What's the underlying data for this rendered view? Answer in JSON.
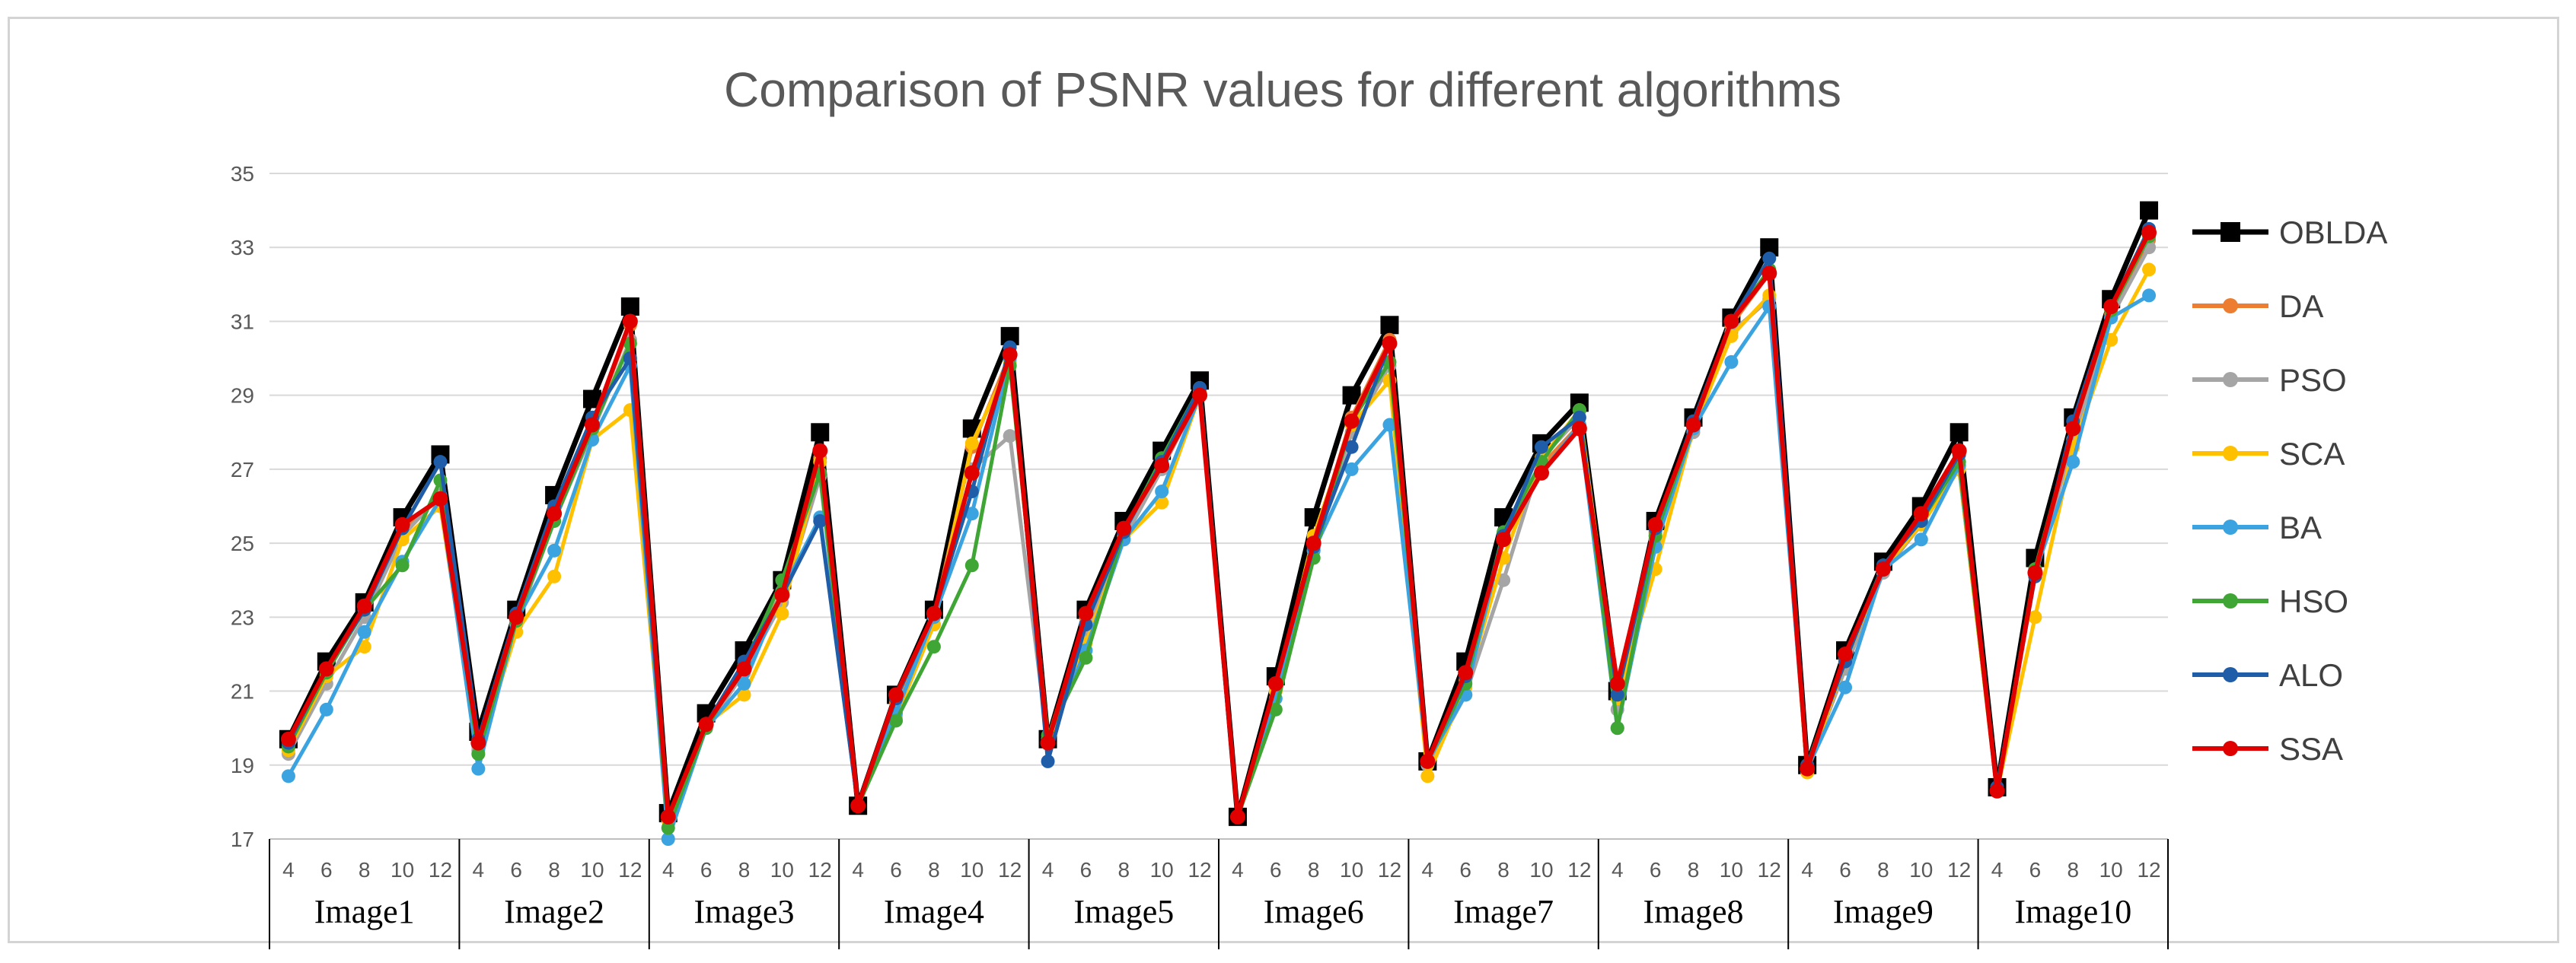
{
  "chart_data": {
    "type": "line",
    "title": "Comparison of PSNR values for different algorithms",
    "xlabel": "",
    "ylabel": "",
    "ylim": [
      17,
      35
    ],
    "yticks": [
      17,
      19,
      21,
      23,
      25,
      27,
      29,
      31,
      33,
      35
    ],
    "thresholds": [
      "4",
      "6",
      "8",
      "10",
      "12"
    ],
    "groups": [
      "Image1",
      "Image2",
      "Image3",
      "Image4",
      "Image5",
      "Image6",
      "Image7",
      "Image8",
      "Image9",
      "Image10"
    ],
    "legend_position": "right",
    "series": [
      {
        "name": "OBLDA",
        "color": "#000000",
        "marker": "square",
        "values": [
          19.7,
          21.8,
          23.4,
          25.7,
          27.4,
          19.9,
          23.2,
          26.3,
          28.9,
          31.4,
          17.7,
          20.4,
          22.1,
          24.0,
          28.0,
          17.9,
          20.9,
          23.2,
          28.1,
          30.6,
          19.7,
          23.2,
          25.6,
          27.5,
          29.4,
          17.6,
          21.4,
          25.7,
          29.0,
          30.9,
          19.1,
          21.8,
          25.7,
          27.7,
          28.8,
          21.0,
          25.6,
          28.4,
          31.1,
          33.0,
          19.0,
          22.1,
          24.5,
          26.0,
          28.0,
          18.4,
          24.6,
          28.4,
          31.6,
          34.0
        ]
      },
      {
        "name": "DA",
        "color": "#ed7d31",
        "marker": "circle",
        "values": [
          19.6,
          21.6,
          23.2,
          25.4,
          26.2,
          19.5,
          23.0,
          25.9,
          28.2,
          30.9,
          17.6,
          20.1,
          21.6,
          23.7,
          27.3,
          17.9,
          20.7,
          23.0,
          27.6,
          30.1,
          19.7,
          23.0,
          25.2,
          27.1,
          29.1,
          17.6,
          21.2,
          25.0,
          28.4,
          30.5,
          19.1,
          21.3,
          25.1,
          27.1,
          28.2,
          21.1,
          25.3,
          28.1,
          30.9,
          32.3,
          18.9,
          22.0,
          24.3,
          25.7,
          27.4,
          18.3,
          24.2,
          28.1,
          31.2,
          33.2
        ]
      },
      {
        "name": "PSO",
        "color": "#a5a5a5",
        "marker": "circle",
        "values": [
          19.3,
          21.2,
          23.0,
          25.2,
          26.3,
          19.4,
          22.8,
          25.6,
          28.0,
          30.5,
          17.5,
          20.0,
          21.5,
          23.4,
          26.8,
          17.9,
          20.5,
          22.8,
          27.0,
          27.9,
          19.6,
          22.6,
          25.1,
          27.0,
          29.0,
          17.6,
          21.0,
          24.8,
          28.0,
          29.8,
          19.0,
          20.9,
          24.0,
          27.3,
          28.4,
          20.5,
          25.1,
          28.0,
          30.7,
          31.6,
          18.9,
          21.6,
          24.2,
          25.5,
          27.0,
          18.3,
          24.1,
          27.8,
          31.1,
          33.0
        ]
      },
      {
        "name": "SCA",
        "color": "#ffc000",
        "marker": "circle",
        "values": [
          19.4,
          21.4,
          22.2,
          25.1,
          26.0,
          19.3,
          22.6,
          24.1,
          27.8,
          28.6,
          17.5,
          20.1,
          20.9,
          23.1,
          27.2,
          17.9,
          20.3,
          22.8,
          27.7,
          29.9,
          19.6,
          22.3,
          25.1,
          26.1,
          29.0,
          17.6,
          21.0,
          25.2,
          28.2,
          29.4,
          18.7,
          21.1,
          24.6,
          27.3,
          28.6,
          20.8,
          24.3,
          28.1,
          30.6,
          31.7,
          18.8,
          21.8,
          24.3,
          25.5,
          27.0,
          18.3,
          23.0,
          27.6,
          30.5,
          32.4
        ]
      },
      {
        "name": "BA",
        "color": "#3ba3df",
        "marker": "circle",
        "values": [
          18.7,
          20.5,
          22.6,
          24.5,
          26.2,
          18.9,
          22.9,
          24.8,
          27.8,
          29.8,
          17.0,
          20.0,
          21.2,
          23.7,
          25.7,
          17.9,
          20.4,
          23.0,
          25.8,
          30.0,
          19.7,
          22.1,
          25.1,
          26.4,
          29.0,
          17.6,
          20.8,
          24.8,
          27.0,
          28.2,
          19.1,
          20.9,
          25.2,
          26.9,
          28.2,
          20.0,
          24.9,
          28.1,
          29.9,
          31.4,
          18.9,
          21.1,
          24.3,
          25.1,
          27.1,
          18.4,
          24.2,
          27.2,
          31.1,
          31.7
        ]
      },
      {
        "name": "HSO",
        "color": "#3fa535",
        "marker": "circle",
        "values": [
          19.5,
          21.5,
          23.2,
          24.4,
          26.7,
          19.3,
          22.9,
          25.6,
          28.1,
          30.4,
          17.3,
          20.0,
          21.7,
          24.0,
          26.9,
          17.9,
          20.2,
          22.2,
          24.4,
          29.8,
          19.8,
          21.9,
          25.3,
          27.3,
          29.2,
          17.6,
          20.5,
          24.6,
          28.3,
          29.9,
          19.1,
          21.2,
          25.3,
          27.2,
          28.6,
          20.0,
          25.2,
          28.2,
          31.0,
          32.4,
          19.0,
          21.9,
          24.4,
          25.6,
          27.2,
          18.3,
          24.3,
          28.1,
          31.3,
          33.3
        ]
      },
      {
        "name": "ALO",
        "color": "#1f5da8",
        "marker": "circle",
        "values": [
          19.6,
          21.6,
          23.2,
          25.4,
          27.2,
          19.7,
          23.1,
          26.0,
          28.4,
          30.0,
          17.6,
          20.1,
          21.8,
          23.6,
          25.6,
          17.9,
          20.8,
          23.1,
          26.4,
          30.3,
          19.1,
          22.8,
          25.3,
          27.2,
          29.2,
          17.6,
          21.2,
          24.9,
          27.6,
          30.4,
          19.1,
          21.4,
          25.2,
          27.6,
          28.4,
          20.9,
          25.4,
          28.3,
          31.0,
          32.7,
          19.0,
          21.8,
          24.4,
          25.6,
          27.4,
          18.4,
          24.1,
          28.3,
          31.4,
          33.5
        ]
      },
      {
        "name": "SSA",
        "color": "#e00000",
        "marker": "circle",
        "values": [
          19.7,
          21.6,
          23.3,
          25.5,
          26.2,
          19.6,
          23.0,
          25.8,
          28.2,
          31.0,
          17.6,
          20.1,
          21.6,
          23.6,
          27.5,
          17.9,
          20.9,
          23.1,
          26.9,
          30.1,
          19.6,
          23.1,
          25.4,
          27.1,
          29.0,
          17.6,
          21.2,
          25.0,
          28.3,
          30.4,
          19.1,
          21.5,
          25.1,
          26.9,
          28.1,
          21.2,
          25.5,
          28.2,
          31.0,
          32.3,
          18.9,
          22.0,
          24.3,
          25.8,
          27.5,
          18.3,
          24.2,
          28.1,
          31.4,
          33.4
        ]
      }
    ]
  }
}
